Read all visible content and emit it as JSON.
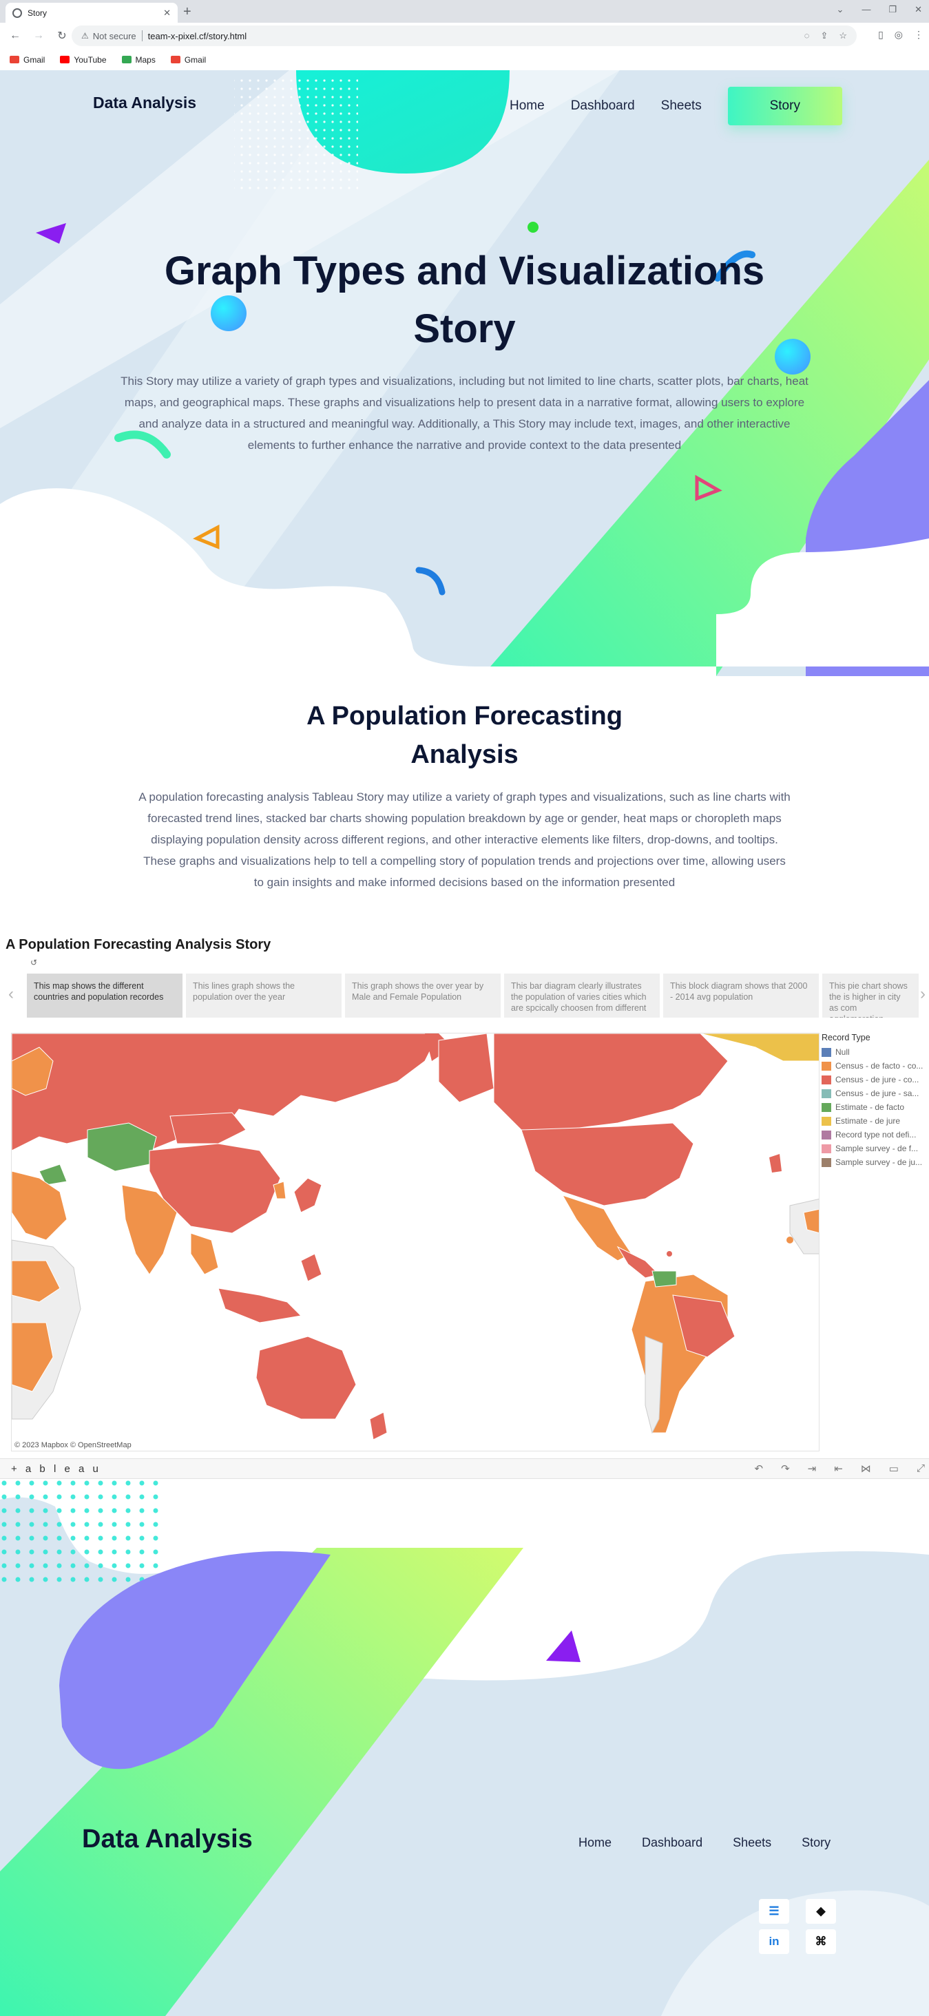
{
  "browser": {
    "tab_title": "Story",
    "tab_close": "✕",
    "new_tab": "+",
    "address_warning": "⚠",
    "address_security": "Not secure",
    "address_url": "team-x-pixel.cf/story.html",
    "bookmarks": [
      {
        "label": "Gmail",
        "color": "#ea4335"
      },
      {
        "label": "YouTube",
        "color": "#ff0000"
      },
      {
        "label": "Maps",
        "color": "#34a853"
      },
      {
        "label": "Gmail",
        "color": "#ea4335"
      }
    ]
  },
  "header": {
    "logo": "Data Analysis",
    "nav": {
      "home": "Home",
      "dashboard": "Dashboard",
      "sheets": "Sheets",
      "story": "Story"
    }
  },
  "hero": {
    "title_line1": "Graph Types and Visualizations",
    "title_line2": "Story",
    "text": "This Story may utilize a variety of graph types and visualizations, including but not limited to line charts, scatter plots, bar charts, heat maps, and geographical maps. These graphs and visualizations help to present data in a narrative format, allowing users to explore and analyze data in a structured and meaningful way. Additionally, a This Story may include text, images, and other interactive elements to further enhance the narrative and provide context to the data presented"
  },
  "section": {
    "title_line1": "A Population Forecasting",
    "title_line2": "Analysis",
    "text": "A population forecasting analysis Tableau Story may utilize a variety of graph types and visualizations, such as line charts with forecasted trend lines, stacked bar charts showing population breakdown by age or gender, heat maps or choropleth maps displaying population density across different regions, and other interactive elements like filters, drop-downs, and tooltips. These graphs and visualizations help to tell a compelling story of population trends and projections over time, allowing users to gain insights and make informed decisions based on the information presented"
  },
  "tableau": {
    "title": "A Population Forecasting Analysis Story",
    "undo": "↺",
    "prev": "‹",
    "next": "›",
    "story_points": [
      "This map shows the different countries and population recordes",
      "This lines graph shows the population over the year",
      "This graph shows the over year by Male and Female Population",
      "This bar diagram clearly illustrates the population of varies cities which are spcically choosen from different",
      "This block diagram shows that 2000 - 2014 avg population",
      "This pie chart shows the is higher in city as com agglomeration"
    ],
    "attribution": "© 2023 Mapbox  © OpenStreetMap",
    "legend": {
      "title": "Record Type",
      "items": [
        {
          "label": "Null",
          "color": "#5b7fb8"
        },
        {
          "label": "Census - de facto - co...",
          "color": "#f0924a"
        },
        {
          "label": "Census - de jure - co...",
          "color": "#e2665a"
        },
        {
          "label": "Census - de jure - sa...",
          "color": "#86bcb6"
        },
        {
          "label": "Estimate - de facto",
          "color": "#65a95b"
        },
        {
          "label": "Estimate - de jure",
          "color": "#ecc14a"
        },
        {
          "label": "Record type not defi...",
          "color": "#b07aa1"
        },
        {
          "label": "Sample survey - de f...",
          "color": "#ee9aa6"
        },
        {
          "label": "Sample survey - de ju...",
          "color": "#9c7f6a"
        }
      ]
    },
    "footer_logo": "+ a b l e a u",
    "controls": [
      "↶",
      "↷",
      "⇥",
      "⇤",
      "⋈",
      "▭",
      "⤢"
    ]
  },
  "footer": {
    "logo": "Data Analysis",
    "nav": {
      "home": "Home",
      "dashboard": "Dashboard",
      "sheets": "Sheets",
      "story": "Story"
    },
    "social": {
      "linkedin": "in",
      "github": "⌘",
      "icon3": "☰",
      "icon4": "◆"
    }
  },
  "colors": {
    "accent_teal": "#1ef0d0",
    "accent_green": "#b8fb7a",
    "accent_purple": "#8a86f7",
    "dark_text": "#0c1633",
    "light_bg": "#dbe7f2"
  }
}
